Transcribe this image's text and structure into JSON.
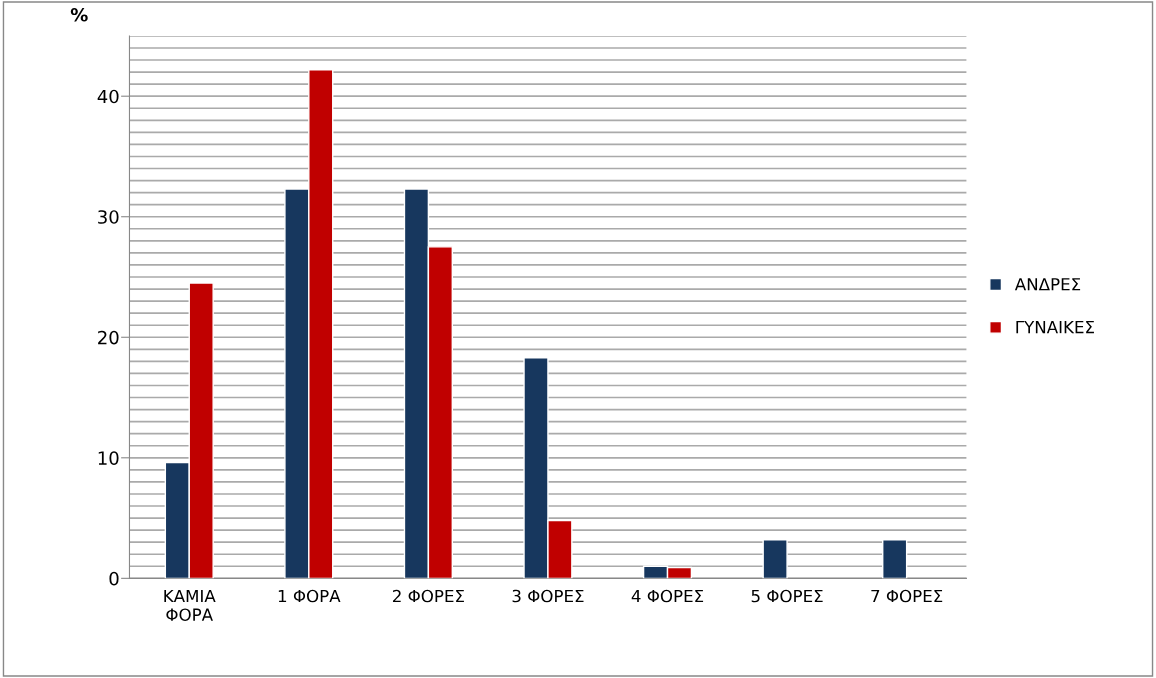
{
  "chart_data": {
    "type": "bar",
    "ylabel": "%",
    "categories": [
      "ΚΑΜΙΑ\nΦΟΡΑ",
      "1 ΦΟΡΑ",
      "2 ΦΟΡΕΣ",
      "3 ΦΟΡΕΣ",
      "4 ΦΟΡΕΣ",
      "5 ΦΟΡΕΣ",
      "7 ΦΟΡΕΣ"
    ],
    "series": [
      {
        "name": "ΑΝΔΡΕΣ",
        "color": "#17375e",
        "values": [
          9.6,
          32.3,
          32.3,
          18.3,
          1.0,
          3.2,
          3.2
        ]
      },
      {
        "name": "ΓΥΝΑΙΚΕΣ",
        "color": "#c00000",
        "values": [
          24.5,
          42.2,
          27.5,
          4.8,
          0.9,
          null,
          null
        ]
      }
    ],
    "ylim": [
      0,
      45
    ],
    "yticks": [
      0,
      {
        "value": 1,
        "label": null
      },
      {
        "value": 2,
        "label": null
      },
      {
        "value": 3,
        "label": null
      },
      {
        "value": 4,
        "label": null
      },
      {
        "value": 5,
        "label": null
      },
      {
        "value": 6,
        "label": null
      },
      {
        "value": 7,
        "label": null
      },
      {
        "value": 8,
        "label": null
      },
      {
        "value": 9,
        "label": null
      },
      10,
      {
        "value": 11,
        "label": null
      },
      {
        "value": 12,
        "label": null
      },
      {
        "value": 13,
        "label": null
      },
      {
        "value": 14,
        "label": null
      },
      {
        "value": 15,
        "label": null
      },
      {
        "value": 16,
        "label": null
      },
      {
        "value": 17,
        "label": null
      },
      {
        "value": 18,
        "label": null
      },
      {
        "value": 19,
        "label": null
      },
      20,
      {
        "value": 21,
        "label": null
      },
      {
        "value": 22,
        "label": null
      },
      {
        "value": 23,
        "label": null
      },
      {
        "value": 24,
        "label": null
      },
      {
        "value": 25,
        "label": null
      },
      {
        "value": 26,
        "label": null
      },
      {
        "value": 27,
        "label": null
      },
      {
        "value": 28,
        "label": null
      },
      {
        "value": 29,
        "label": null
      },
      30,
      {
        "value": 31,
        "label": null
      },
      {
        "value": 32,
        "label": null
      },
      {
        "value": 33,
        "label": null
      },
      {
        "value": 34,
        "label": null
      },
      {
        "value": 35,
        "label": null
      },
      {
        "value": 36,
        "label": null
      },
      {
        "value": 37,
        "label": null
      },
      {
        "value": 38,
        "label": null
      },
      {
        "value": 39,
        "label": null
      },
      40,
      {
        "value": 41,
        "label": null
      },
      {
        "value": 42,
        "label": null
      },
      {
        "value": 43,
        "label": null
      },
      {
        "value": 44,
        "label": null
      },
      {
        "value": 45,
        "label": null
      }
    ],
    "grid": "y",
    "legend": "right"
  }
}
